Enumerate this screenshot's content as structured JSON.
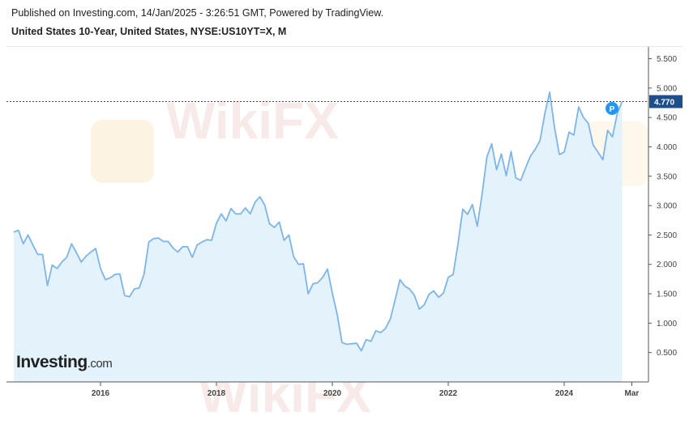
{
  "header": {
    "published": "Published on Investing.com, 14/Jan/2025 - 3:26:51 GMT, Powered by TradingView.",
    "instrument": "United States 10-Year, United States, NYSE:US10YT=X, M"
  },
  "logo": {
    "brand": "Investing",
    "suffix": ".com"
  },
  "watermark": {
    "text": "WikiFX"
  },
  "chart_data": {
    "type": "area",
    "title": "United States 10-Year, United States, NYSE:US10YT=X, M",
    "ylim": [
      0,
      5.7
    ],
    "y_ticks": [
      "0.500",
      "1.000",
      "1.500",
      "2.000",
      "2.500",
      "3.000",
      "3.500",
      "4.000",
      "4.500",
      "5.000",
      "5.500"
    ],
    "x_ticks": [
      "2016",
      "2018",
      "2020",
      "2022",
      "2024",
      "Mar"
    ],
    "last_value_label": "4.770",
    "marker_label": "P",
    "colors": {
      "line": "#7cb5ec",
      "fill": "#e4f2fb",
      "last_price_bg": "#1f4e8c",
      "marker": "#2196f3"
    },
    "series": [
      {
        "x": [
          "2014-07",
          "2014-08",
          "2014-09",
          "2014-10",
          "2014-11",
          "2014-12",
          "2015-01",
          "2015-02",
          "2015-03",
          "2015-04",
          "2015-05",
          "2015-06",
          "2015-07",
          "2015-08",
          "2015-09",
          "2015-10",
          "2015-11",
          "2015-12",
          "2016-01",
          "2016-02",
          "2016-03",
          "2016-04",
          "2016-05",
          "2016-06",
          "2016-07",
          "2016-08",
          "2016-09",
          "2016-10",
          "2016-11",
          "2016-12",
          "2017-01",
          "2017-02",
          "2017-03",
          "2017-04",
          "2017-05",
          "2017-06",
          "2017-07",
          "2017-08",
          "2017-09",
          "2017-10",
          "2017-11",
          "2017-12",
          "2018-01",
          "2018-02",
          "2018-03",
          "2018-04",
          "2018-05",
          "2018-06",
          "2018-07",
          "2018-08",
          "2018-09",
          "2018-10",
          "2018-11",
          "2018-12",
          "2019-01",
          "2019-02",
          "2019-03",
          "2019-04",
          "2019-05",
          "2019-06",
          "2019-07",
          "2019-08",
          "2019-09",
          "2019-10",
          "2019-11",
          "2019-12",
          "2020-01",
          "2020-02",
          "2020-03",
          "2020-04",
          "2020-05",
          "2020-06",
          "2020-07",
          "2020-08",
          "2020-09",
          "2020-10",
          "2020-11",
          "2020-12",
          "2021-01",
          "2021-02",
          "2021-03",
          "2021-04",
          "2021-05",
          "2021-06",
          "2021-07",
          "2021-08",
          "2021-09",
          "2021-10",
          "2021-11",
          "2021-12",
          "2022-01",
          "2022-02",
          "2022-03",
          "2022-04",
          "2022-05",
          "2022-06",
          "2022-07",
          "2022-08",
          "2022-09",
          "2022-10",
          "2022-11",
          "2022-12",
          "2023-01",
          "2023-02",
          "2023-03",
          "2023-04",
          "2023-05",
          "2023-06",
          "2023-07",
          "2023-08",
          "2023-09",
          "2023-10",
          "2023-11",
          "2023-12",
          "2024-01",
          "2024-02",
          "2024-03",
          "2024-04",
          "2024-05",
          "2024-06",
          "2024-07",
          "2024-08",
          "2024-09",
          "2024-10",
          "2024-11",
          "2024-12",
          "2025-01"
        ],
        "values": [
          2.55,
          2.58,
          2.35,
          2.5,
          2.33,
          2.17,
          2.17,
          1.64,
          1.99,
          1.93,
          2.04,
          2.12,
          2.35,
          2.2,
          2.04,
          2.14,
          2.21,
          2.27,
          1.93,
          1.74,
          1.77,
          1.83,
          1.84,
          1.47,
          1.45,
          1.58,
          1.6,
          1.83,
          2.38,
          2.44,
          2.45,
          2.39,
          2.39,
          2.28,
          2.21,
          2.3,
          2.3,
          2.12,
          2.33,
          2.38,
          2.42,
          2.41,
          2.7,
          2.86,
          2.74,
          2.95,
          2.86,
          2.86,
          2.96,
          2.86,
          3.06,
          3.15,
          3.01,
          2.69,
          2.63,
          2.72,
          2.41,
          2.5,
          2.13,
          2.0,
          2.01,
          1.5,
          1.67,
          1.69,
          1.78,
          1.92,
          1.51,
          1.15,
          0.67,
          0.64,
          0.65,
          0.66,
          0.53,
          0.72,
          0.69,
          0.87,
          0.84,
          0.91,
          1.07,
          1.4,
          1.74,
          1.63,
          1.58,
          1.47,
          1.24,
          1.31,
          1.49,
          1.55,
          1.44,
          1.51,
          1.78,
          1.83,
          2.34,
          2.94,
          2.85,
          3.02,
          2.65,
          3.19,
          3.83,
          4.05,
          3.61,
          3.88,
          3.51,
          3.92,
          3.47,
          3.43,
          3.64,
          3.84,
          3.96,
          4.11,
          4.57,
          4.93,
          4.33,
          3.87,
          3.91,
          4.25,
          4.2,
          4.68,
          4.5,
          4.4,
          4.03,
          3.91,
          3.78,
          4.28,
          4.17,
          4.57,
          4.77
        ]
      }
    ]
  }
}
